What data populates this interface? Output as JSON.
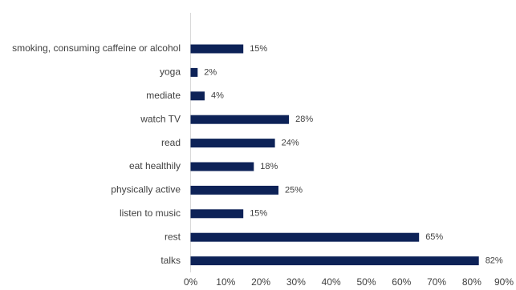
{
  "chart_data": {
    "type": "bar",
    "orientation": "horizontal",
    "categories": [
      "smoking, consuming caffeine or alcohol",
      "yoga",
      "mediate",
      "watch TV",
      "read",
      "eat healthily",
      "physically active",
      "listen to music",
      "rest",
      "talks"
    ],
    "values": [
      15,
      2,
      4,
      28,
      24,
      18,
      25,
      15,
      65,
      82
    ],
    "value_labels": [
      "15%",
      "2%",
      "4%",
      "28%",
      "24%",
      "18%",
      "25%",
      "15%",
      "65%",
      "82%"
    ],
    "x_ticks": [
      "0%",
      "10%",
      "20%",
      "30%",
      "40%",
      "50%",
      "60%",
      "70%",
      "80%",
      "90%"
    ],
    "xlim": [
      0,
      90
    ],
    "unit": "%",
    "bar_color": "#0d2257",
    "axis_color": "#d9d9d9",
    "grid": false,
    "legend": "none",
    "title": "",
    "xlabel": "",
    "ylabel": ""
  }
}
